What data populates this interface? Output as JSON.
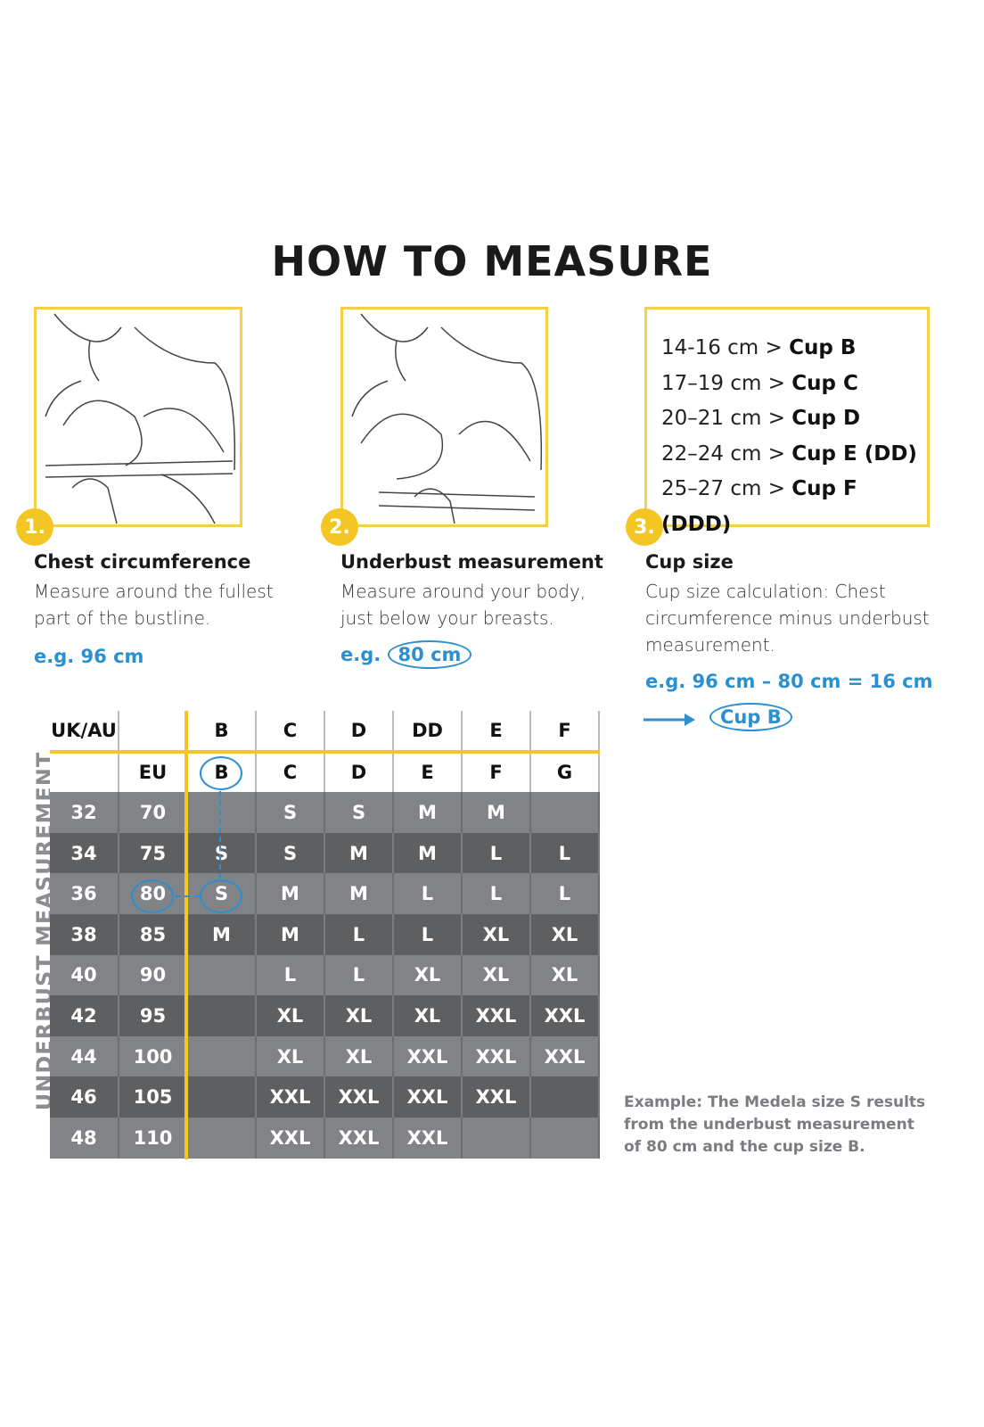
{
  "title": "HOW TO MEASURE",
  "steps": [
    {
      "number": "1.",
      "title": "Chest circumference",
      "description": "Measure around the fullest part of the bustline.",
      "example": "e.g. 96 cm"
    },
    {
      "number": "2.",
      "title": "Underbust measurement",
      "description": "Measure around your body, just below your breasts.",
      "example_prefix": "e.g.",
      "example_value": "80 cm"
    },
    {
      "number": "3.",
      "title": "Cup size",
      "description": "Cup size calculation: Chest circumference minus underbust measurement.",
      "example": "e.g. 96 cm – 80 cm = 16 cm",
      "result": "Cup B"
    }
  ],
  "cup_table": [
    {
      "range": "14-16 cm >",
      "cup": "Cup B"
    },
    {
      "range": "17–19 cm >",
      "cup": "Cup C"
    },
    {
      "range": "20–21 cm >",
      "cup": "Cup D"
    },
    {
      "range": "22–24 cm >",
      "cup": "Cup E (DD)"
    },
    {
      "range": "25–27 cm >",
      "cup": "Cup F (DDD)"
    }
  ],
  "size_chart": {
    "side_label": "UNDERBUST MEASUREMENT",
    "header_uk": [
      "UK/AU",
      "",
      "B",
      "C",
      "D",
      "DD",
      "E",
      "F"
    ],
    "header_eu": [
      "",
      "EU",
      "B",
      "C",
      "D",
      "E",
      "F",
      "G"
    ],
    "rows": [
      [
        "32",
        "70",
        "",
        "S",
        "S",
        "M",
        "M",
        ""
      ],
      [
        "34",
        "75",
        "S",
        "S",
        "M",
        "M",
        "L",
        "L"
      ],
      [
        "36",
        "80",
        "S",
        "M",
        "M",
        "L",
        "L",
        "L"
      ],
      [
        "38",
        "85",
        "M",
        "M",
        "L",
        "L",
        "XL",
        "XL"
      ],
      [
        "40",
        "90",
        "",
        "L",
        "L",
        "XL",
        "XL",
        "XL"
      ],
      [
        "42",
        "95",
        "",
        "XL",
        "XL",
        "XL",
        "XXL",
        "XXL"
      ],
      [
        "44",
        "100",
        "",
        "XL",
        "XL",
        "XXL",
        "XXL",
        "XXL"
      ],
      [
        "46",
        "105",
        "",
        "XXL",
        "XXL",
        "XXL",
        "XXL",
        ""
      ],
      [
        "48",
        "110",
        "",
        "XXL",
        "XXL",
        "XXL",
        "",
        ""
      ]
    ]
  },
  "note": "Example: The Medela size S results from the underbust measurement of 80 cm and the cup size B.",
  "colors": {
    "accent_yellow": "#f3c623",
    "highlight_blue": "#2c8fcf",
    "row_light": "#818386",
    "row_dark": "#5e5f61"
  }
}
